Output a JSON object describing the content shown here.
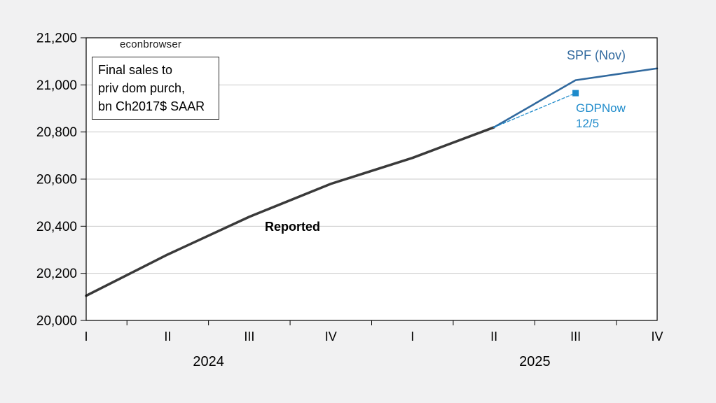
{
  "page": {
    "background": "#f1f1f2",
    "plot_background": "#ffffff",
    "gridline_color": "#c9c9c9",
    "axis_color": "#000000"
  },
  "chart_data": {
    "type": "line",
    "title": "Final sales to priv dom purch, bn Ch2017$ SAAR",
    "watermark": "econbrowser",
    "info_box_lines": [
      "Final sales to",
      "priv dom purch,",
      "bn Ch2017$ SAAR"
    ],
    "x_quarter_labels": [
      "I",
      "II",
      "III",
      "IV",
      "I",
      "II",
      "III",
      "IV"
    ],
    "years": [
      {
        "label": "2024",
        "center_quarter_index": 1.5
      },
      {
        "label": "2025",
        "center_quarter_index": 5.5
      }
    ],
    "ylim": [
      20000,
      21200
    ],
    "ytick_step": 200,
    "grid": true,
    "legend_position": "inline-annotations",
    "series": [
      {
        "name": "Reported",
        "color": "#3a3a3a",
        "width": 3.5,
        "dash": null,
        "quarters": [
          "2024Q1",
          "2024Q2",
          "2024Q3",
          "2024Q4",
          "2025Q1",
          "2025Q2"
        ],
        "x_index": [
          0,
          1,
          2,
          3,
          4,
          5
        ],
        "values": [
          20105,
          20280,
          20440,
          20580,
          20690,
          20820
        ]
      },
      {
        "name": "SPF (Nov)",
        "color": "#31699e",
        "width": 2.6,
        "dash": null,
        "quarters": [
          "2025Q2",
          "2025Q3",
          "2025Q4"
        ],
        "x_index": [
          5,
          6,
          7
        ],
        "values": [
          20820,
          21020,
          21070
        ]
      },
      {
        "name": "GDPNow 12/5",
        "color": "#1e8bcb",
        "width": 1.3,
        "dash": "4 3",
        "quarters": [
          "2025Q2",
          "2025Q3"
        ],
        "x_index": [
          5,
          6
        ],
        "values": [
          20820,
          20965
        ],
        "end_marker": "square"
      }
    ],
    "annotations": [
      {
        "text": "Reported",
        "series": "Reported",
        "color": "#000000",
        "bold": true
      },
      {
        "text": "SPF (Nov)",
        "series": "SPF (Nov)",
        "color": "#31699e",
        "bold": false
      },
      {
        "text": "GDPNow\n12/5",
        "series": "GDPNow 12/5",
        "color": "#1e8bcb",
        "bold": false
      }
    ]
  }
}
